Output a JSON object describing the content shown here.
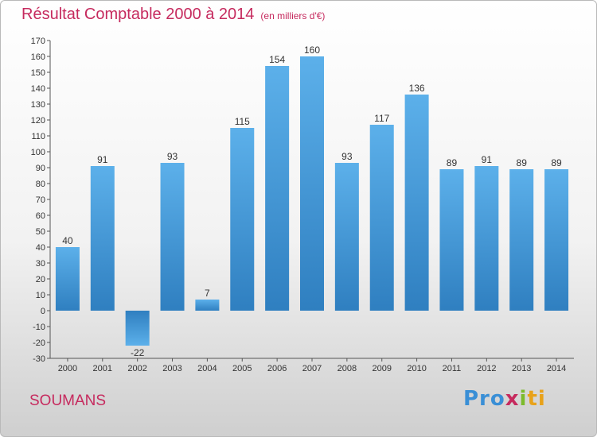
{
  "chart_data": {
    "type": "bar",
    "title": "Résultat Comptable 2000 à 2014",
    "subtitle": "(en milliers d'€)",
    "categories": [
      "2000",
      "2001",
      "2002",
      "2003",
      "2004",
      "2005",
      "2006",
      "2007",
      "2008",
      "2009",
      "2010",
      "2011",
      "2012",
      "2013",
      "2014"
    ],
    "values": [
      40,
      91,
      -22,
      93,
      7,
      115,
      154,
      160,
      93,
      117,
      136,
      89,
      91,
      89,
      89
    ],
    "ylim": [
      -30,
      170
    ],
    "ytick_step": 10,
    "grid": false,
    "bar_color": "#4b9fdd",
    "xlabel": "",
    "ylabel": ""
  },
  "location": "SOUMANS",
  "brand": {
    "p1": "Pro",
    "p2": "x",
    "p3": "i",
    "p4": "ti"
  }
}
